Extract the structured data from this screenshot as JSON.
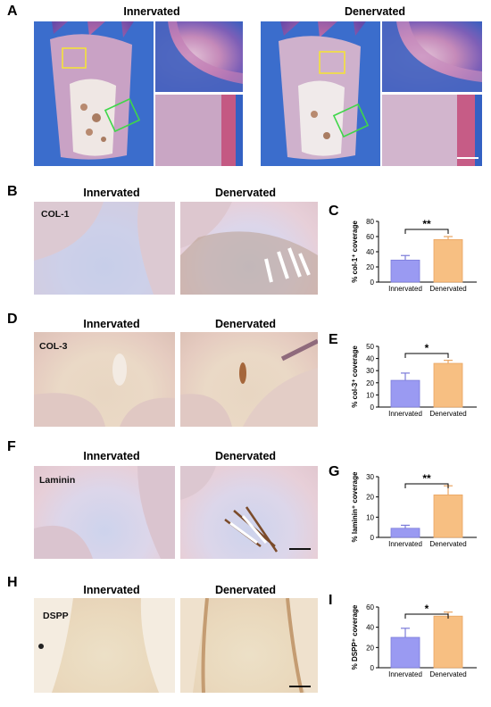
{
  "panels": {
    "A": {
      "letter": "A",
      "title_left": "Innervated",
      "title_right": "Denervated"
    },
    "B": {
      "letter": "B",
      "stain": "COL-1",
      "title_left": "Innervated",
      "title_right": "Denervated"
    },
    "D": {
      "letter": "D",
      "stain": "COL-3",
      "title_left": "Innervated",
      "title_right": "Denervated"
    },
    "F": {
      "letter": "F",
      "stain": "Laminin",
      "title_left": "Innervated",
      "title_right": "Denervated"
    },
    "H": {
      "letter": "H",
      "stain": "DSPP",
      "title_left": "Innervated",
      "title_right": "Denervated"
    }
  },
  "chart_labels": {
    "C": "C",
    "E": "E",
    "G": "G",
    "I": "I"
  },
  "colors": {
    "innervated": "#9a9af2",
    "denervated": "#f7bf82",
    "innervated_edge": "#7b7bd9",
    "denervated_edge": "#e9a562"
  },
  "chart_data": [
    {
      "id": "C",
      "type": "bar",
      "categories": [
        "Innervated",
        "Denervated"
      ],
      "values": [
        29,
        56
      ],
      "errors": [
        6,
        4
      ],
      "ylabel": "% col-1⁺ coverage",
      "ylim": [
        0,
        80
      ],
      "yticks": [
        0,
        20,
        40,
        60,
        80
      ],
      "significance": "**"
    },
    {
      "id": "E",
      "type": "bar",
      "categories": [
        "Innervated",
        "Denervated"
      ],
      "values": [
        22,
        36
      ],
      "errors": [
        6,
        2.5
      ],
      "ylabel": "% col-3⁺ coverage",
      "ylim": [
        0,
        50
      ],
      "yticks": [
        0,
        10,
        20,
        30,
        40,
        50
      ],
      "significance": "*"
    },
    {
      "id": "G",
      "type": "bar",
      "categories": [
        "Innervated",
        "Denervated"
      ],
      "values": [
        4.5,
        21
      ],
      "errors": [
        1.5,
        4.5
      ],
      "ylabel": "% laminin⁺ coverage",
      "ylim": [
        0,
        30
      ],
      "yticks": [
        0,
        10,
        20,
        30
      ],
      "significance": "**"
    },
    {
      "id": "I",
      "type": "bar",
      "categories": [
        "Innervated",
        "Denervated"
      ],
      "values": [
        30,
        51
      ],
      "errors": [
        9,
        4
      ],
      "ylabel": "% DSPP⁺ coverage",
      "ylim": [
        0,
        60
      ],
      "yticks": [
        0,
        20,
        40,
        60
      ],
      "significance": "*"
    }
  ]
}
